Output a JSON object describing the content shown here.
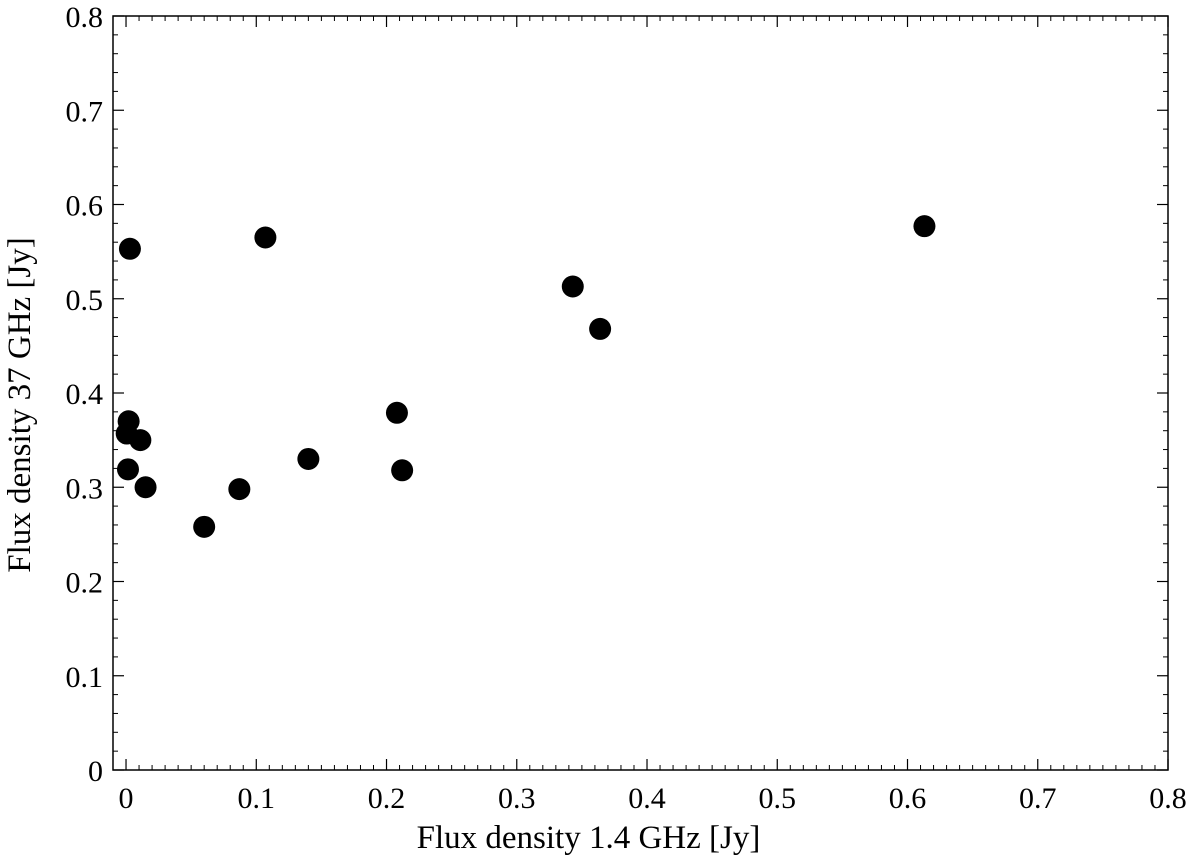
{
  "chart_data": {
    "type": "scatter",
    "title": "",
    "xlabel": "Flux density 1.4 GHz [Jy]",
    "ylabel": "Flux density 37 GHz [Jy]",
    "xlim": [
      -0.01,
      0.8
    ],
    "ylim": [
      0,
      0.8
    ],
    "grid": false,
    "legend": "none",
    "marker_color": "#000000",
    "x_ticks": [
      0,
      0.1,
      0.2,
      0.3,
      0.4,
      0.5,
      0.6,
      0.7,
      0.8
    ],
    "x_tick_labels": [
      "0",
      "0.1",
      "0.2",
      "0.3",
      "0.4",
      "0.5",
      "0.6",
      "0.7",
      "0.8"
    ],
    "y_ticks": [
      0,
      0.1,
      0.2,
      0.3,
      0.4,
      0.5,
      0.6,
      0.7,
      0.8
    ],
    "y_tick_labels": [
      "0",
      "0.1",
      "0.2",
      "0.3",
      "0.4",
      "0.5",
      "0.6",
      "0.7",
      "0.8"
    ],
    "series": [
      {
        "points": [
          {
            "x": 0.003,
            "y": 0.553
          },
          {
            "x": 0.107,
            "y": 0.565
          },
          {
            "x": 0.613,
            "y": 0.577
          },
          {
            "x": 0.343,
            "y": 0.513
          },
          {
            "x": 0.364,
            "y": 0.468
          },
          {
            "x": 0.002,
            "y": 0.37
          },
          {
            "x": 0.0005,
            "y": 0.357
          },
          {
            "x": 0.011,
            "y": 0.35
          },
          {
            "x": 0.208,
            "y": 0.379
          },
          {
            "x": 0.14,
            "y": 0.33
          },
          {
            "x": 0.0015,
            "y": 0.319
          },
          {
            "x": 0.212,
            "y": 0.318
          },
          {
            "x": 0.015,
            "y": 0.3
          },
          {
            "x": 0.087,
            "y": 0.298
          },
          {
            "x": 0.06,
            "y": 0.258
          }
        ]
      }
    ]
  }
}
